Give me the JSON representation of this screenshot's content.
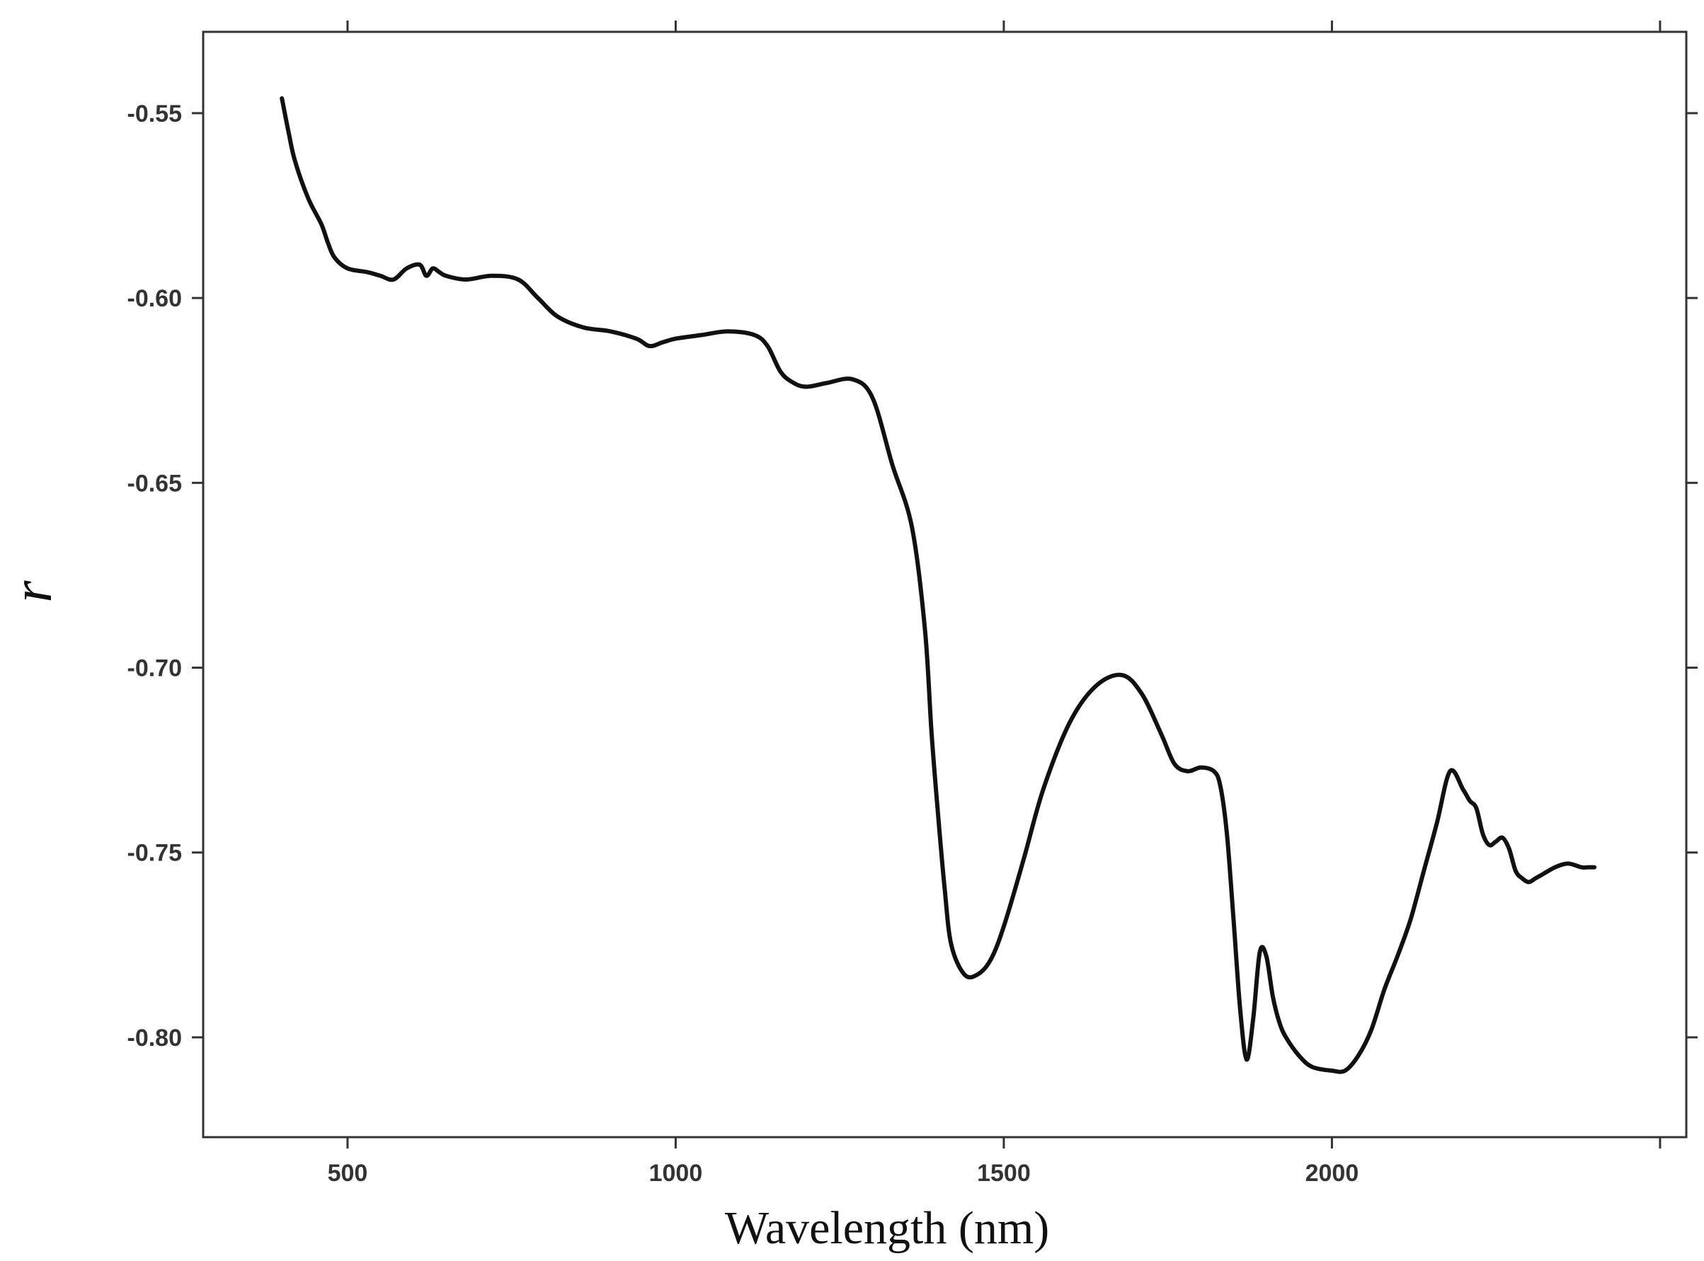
{
  "chart_data": {
    "type": "line",
    "title": "",
    "xlabel": "Wavelength (nm)",
    "ylabel": "r",
    "xlim": [
      280,
      2540
    ],
    "ylim": [
      -0.827,
      -0.528
    ],
    "x_ticks": [
      500,
      1000,
      1500,
      2000,
      2500
    ],
    "x_tick_labels": [
      "500",
      "1000",
      "1500",
      "2000",
      ""
    ],
    "y_ticks": [
      -0.55,
      -0.6,
      -0.65,
      -0.7,
      -0.75,
      -0.8
    ],
    "y_tick_labels": [
      "-0.55",
      "-0.60",
      "-0.65",
      "-0.70",
      "-0.75",
      "-0.80"
    ],
    "grid": false,
    "legend": "none",
    "line_color": "#111111",
    "series": [
      {
        "x": [
          400,
          410,
          420,
          440,
          460,
          470,
          480,
          500,
          530,
          550,
          570,
          590,
          610,
          620,
          630,
          640,
          650,
          680,
          720,
          760,
          790,
          820,
          860,
          900,
          940,
          960,
          980,
          1000,
          1040,
          1080,
          1120,
          1140,
          1160,
          1180,
          1200,
          1230,
          1270,
          1300,
          1330,
          1360,
          1380,
          1390,
          1400,
          1410,
          1420,
          1440,
          1460,
          1480,
          1500,
          1530,
          1560,
          1600,
          1640,
          1680,
          1710,
          1740,
          1760,
          1780,
          1800,
          1820,
          1830,
          1840,
          1850,
          1860,
          1870,
          1880,
          1890,
          1900,
          1910,
          1920,
          1930,
          1950,
          1970,
          2000,
          2020,
          2040,
          2060,
          2080,
          2100,
          2120,
          2140,
          2160,
          2180,
          2200,
          2210,
          2220,
          2230,
          2240,
          2250,
          2260,
          2270,
          2280,
          2290,
          2300,
          2310,
          2320,
          2340,
          2360,
          2380,
          2390,
          2400
        ],
        "y": [
          -0.546,
          -0.555,
          -0.563,
          -0.573,
          -0.58,
          -0.585,
          -0.589,
          -0.592,
          -0.593,
          -0.594,
          -0.595,
          -0.592,
          -0.591,
          -0.594,
          -0.592,
          -0.593,
          -0.594,
          -0.595,
          -0.594,
          -0.595,
          -0.6,
          -0.605,
          -0.608,
          -0.609,
          -0.611,
          -0.613,
          -0.612,
          -0.611,
          -0.61,
          -0.609,
          -0.61,
          -0.613,
          -0.62,
          -0.623,
          -0.624,
          -0.623,
          -0.622,
          -0.627,
          -0.645,
          -0.662,
          -0.69,
          -0.718,
          -0.74,
          -0.76,
          -0.775,
          -0.783,
          -0.783,
          -0.779,
          -0.77,
          -0.752,
          -0.733,
          -0.715,
          -0.705,
          -0.702,
          -0.707,
          -0.718,
          -0.726,
          -0.728,
          -0.727,
          -0.728,
          -0.732,
          -0.745,
          -0.768,
          -0.792,
          -0.806,
          -0.795,
          -0.777,
          -0.778,
          -0.789,
          -0.796,
          -0.8,
          -0.805,
          -0.808,
          -0.809,
          -0.809,
          -0.805,
          -0.798,
          -0.787,
          -0.778,
          -0.768,
          -0.755,
          -0.742,
          -0.728,
          -0.733,
          -0.736,
          -0.738,
          -0.745,
          -0.748,
          -0.747,
          -0.746,
          -0.749,
          -0.755,
          -0.757,
          -0.758,
          -0.757,
          -0.756,
          -0.754,
          -0.753,
          -0.754,
          -0.754,
          -0.754
        ]
      }
    ]
  }
}
